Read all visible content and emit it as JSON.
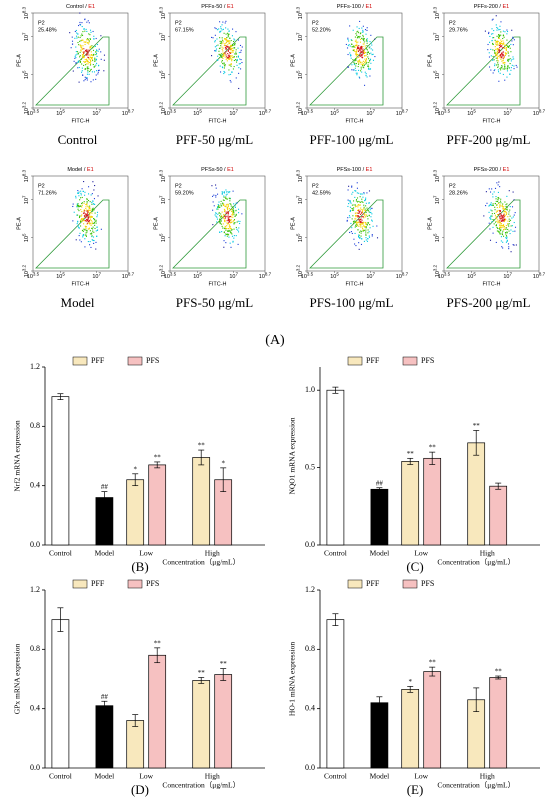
{
  "figure": {
    "label": "(A)",
    "separator": " / ",
    "x_label": "FITC-H",
    "y_label": "PE-A",
    "x_ticks": [
      {
        "base": "10",
        "exp": "3.5"
      },
      {
        "base": "10",
        "exp": "5"
      },
      {
        "base": "10",
        "exp": "7"
      },
      {
        "base": "10",
        "exp": "8.7"
      }
    ],
    "y_ticks": [
      {
        "base": "10",
        "exp": "3.2"
      },
      {
        "base": "10",
        "exp": "5"
      },
      {
        "base": "10",
        "exp": "7"
      },
      {
        "base": "10",
        "exp": "8.3"
      }
    ],
    "plots": [
      {
        "title": "Control",
        "gate": "E1",
        "population": "P2",
        "percent": "25.48%",
        "caption": "Control"
      },
      {
        "title": "PFFs-50",
        "gate": "E1",
        "population": "P2",
        "percent": "67.15%",
        "caption": "PFF-50 μg/mL"
      },
      {
        "title": "PFFs-100",
        "gate": "E1",
        "population": "P2",
        "percent": "52.20%",
        "caption": "PFF-100 μg/mL"
      },
      {
        "title": "PFFs-200",
        "gate": "E1",
        "population": "P2",
        "percent": "29.76%",
        "caption": "PFF-200 μg/mL"
      },
      {
        "title": "Model",
        "gate": "E1",
        "population": "P2",
        "percent": "71.26%",
        "caption": "Model"
      },
      {
        "title": "PFSs-50",
        "gate": "E1",
        "population": "P2",
        "percent": "59.20%",
        "caption": "PFS-50 μg/mL"
      },
      {
        "title": "PFSs-100",
        "gate": "E1",
        "population": "P2",
        "percent": "42.59%",
        "caption": "PFS-100 μg/mL"
      },
      {
        "title": "PFSs-200",
        "gate": "E1",
        "population": "P2",
        "percent": "28.26%",
        "caption": "PFS-200 μg/mL"
      }
    ]
  },
  "chart_data": [
    {
      "type": "bar",
      "panel": "(B)",
      "y_label": "Nrf2 mRNA expression",
      "x_label": "Concentration（μg/mL）",
      "legend": "upper left",
      "categories": [
        "Control",
        "Model",
        "Low",
        "High"
      ],
      "ylim": [
        0,
        1.2
      ],
      "yticks": [
        {
          "value": 0,
          "label": "0.0"
        },
        0.4,
        0.8,
        1.2
      ],
      "series": [
        {
          "color": "#ffffff",
          "values": [
            1.0,
            null,
            null,
            null
          ],
          "errors": [
            0.02,
            null,
            null,
            null
          ],
          "annotations": [
            null,
            null,
            null,
            null
          ]
        },
        {
          "color": "#000000",
          "values": [
            null,
            0.32,
            null,
            null
          ],
          "errors": [
            null,
            0.04,
            null,
            null
          ],
          "annotations": [
            null,
            "##",
            null,
            null
          ]
        },
        {
          "name": "PFF",
          "color": "#f8e8bd",
          "values": [
            null,
            null,
            0.44,
            0.59
          ],
          "errors": [
            null,
            null,
            0.04,
            0.05
          ],
          "annotations": [
            null,
            null,
            "*",
            "**"
          ]
        },
        {
          "name": "PFS",
          "color": "#f6c1c1",
          "values": [
            null,
            null,
            0.54,
            0.44
          ],
          "errors": [
            null,
            null,
            0.02,
            0.08
          ],
          "annotations": [
            null,
            null,
            "**",
            "*"
          ]
        }
      ]
    },
    {
      "type": "bar",
      "panel": "(C)",
      "y_label": "NQO1 mRNA expression",
      "x_label": "Concentration（μg/mL）",
      "legend": "upper left",
      "categories": [
        "Control",
        "Model",
        "Low",
        "High"
      ],
      "ylim": [
        0,
        1.15
      ],
      "yticks": [
        {
          "value": 0,
          "label": "0.0"
        },
        0.5,
        {
          "value": 1,
          "label": "1.0"
        }
      ],
      "series": [
        {
          "color": "#ffffff",
          "values": [
            1.0,
            null,
            null,
            null
          ],
          "errors": [
            0.02,
            null,
            null,
            null
          ],
          "annotations": [
            null,
            null,
            null,
            null
          ]
        },
        {
          "color": "#000000",
          "values": [
            null,
            0.36,
            null,
            null
          ],
          "errors": [
            null,
            0.01,
            null,
            null
          ],
          "annotations": [
            null,
            "##",
            null,
            null
          ]
        },
        {
          "name": "PFF",
          "color": "#f8e8bd",
          "values": [
            null,
            null,
            0.54,
            0.66
          ],
          "errors": [
            null,
            null,
            0.02,
            0.08
          ],
          "annotations": [
            null,
            null,
            "**",
            "**"
          ]
        },
        {
          "name": "PFS",
          "color": "#f6c1c1",
          "values": [
            null,
            null,
            0.56,
            0.38
          ],
          "errors": [
            null,
            null,
            0.04,
            0.02
          ],
          "annotations": [
            null,
            null,
            "**",
            null
          ]
        }
      ]
    },
    {
      "type": "bar",
      "panel": "(D)",
      "y_label": "GPx mRNA expression",
      "x_label": "Concentration（μg/mL）",
      "legend": "upper left",
      "categories": [
        "Control",
        "Model",
        "Low",
        "High"
      ],
      "ylim": [
        0,
        1.2
      ],
      "yticks": [
        {
          "value": 0,
          "label": "0.0"
        },
        0.4,
        0.8,
        1.2
      ],
      "series": [
        {
          "color": "#ffffff",
          "values": [
            1.0,
            null,
            null,
            null
          ],
          "errors": [
            0.08,
            null,
            null,
            null
          ],
          "annotations": [
            null,
            null,
            null,
            null
          ]
        },
        {
          "color": "#000000",
          "values": [
            null,
            0.42,
            null,
            null
          ],
          "errors": [
            null,
            0.03,
            null,
            null
          ],
          "annotations": [
            null,
            "##",
            null,
            null
          ]
        },
        {
          "name": "PFF",
          "color": "#f8e8bd",
          "values": [
            null,
            null,
            0.32,
            0.59
          ],
          "errors": [
            null,
            null,
            0.04,
            0.02
          ],
          "annotations": [
            null,
            null,
            null,
            "**"
          ]
        },
        {
          "name": "PFS",
          "color": "#f6c1c1",
          "values": [
            null,
            null,
            0.76,
            0.63
          ],
          "errors": [
            null,
            null,
            0.05,
            0.04
          ],
          "annotations": [
            null,
            null,
            "**",
            "**"
          ]
        }
      ]
    },
    {
      "type": "bar",
      "panel": "(E)",
      "y_label": "HO-1 mRNA expression",
      "x_label": "Concentration（μg/mL）",
      "legend": "upper left",
      "categories": [
        "Control",
        "Model",
        "Low",
        "High"
      ],
      "ylim": [
        0,
        1.2
      ],
      "yticks": [
        {
          "value": 0,
          "label": "0.0"
        },
        0.4,
        0.8,
        1.2
      ],
      "series": [
        {
          "color": "#ffffff",
          "values": [
            1.0,
            null,
            null,
            null
          ],
          "errors": [
            0.04,
            null,
            null,
            null
          ],
          "annotations": [
            null,
            null,
            null,
            null
          ]
        },
        {
          "color": "#000000",
          "values": [
            null,
            0.44,
            null,
            null
          ],
          "errors": [
            null,
            0.04,
            null,
            null
          ],
          "annotations": [
            null,
            null,
            null,
            null
          ]
        },
        {
          "name": "PFF",
          "color": "#f8e8bd",
          "values": [
            null,
            null,
            0.53,
            0.46
          ],
          "errors": [
            null,
            null,
            0.02,
            0.08
          ],
          "annotations": [
            null,
            null,
            "*",
            null
          ]
        },
        {
          "name": "PFS",
          "color": "#f6c1c1",
          "values": [
            null,
            null,
            0.65,
            0.61
          ],
          "errors": [
            null,
            null,
            0.03,
            0.01
          ],
          "annotations": [
            null,
            null,
            "**",
            "**"
          ]
        }
      ]
    }
  ]
}
